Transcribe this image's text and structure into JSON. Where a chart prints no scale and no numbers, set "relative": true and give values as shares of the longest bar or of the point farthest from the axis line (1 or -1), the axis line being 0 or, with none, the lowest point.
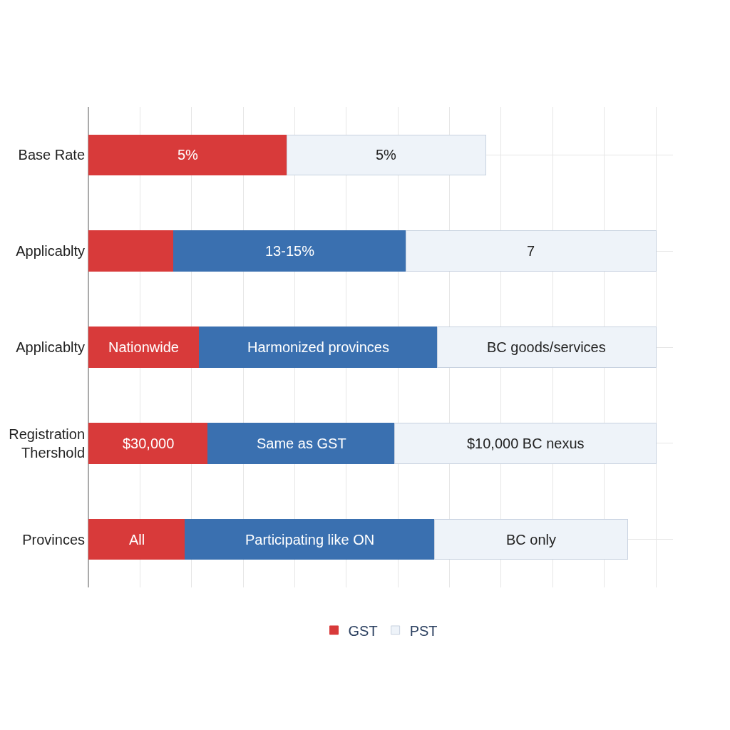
{
  "chart_data": {
    "type": "bar",
    "orientation": "horizontal",
    "stacked": true,
    "relative": true,
    "categories": [
      "Base Rate",
      "Applicablty",
      "Applicablty",
      "Registration\nThershold",
      "Provinces"
    ],
    "series": [
      {
        "name": "GST",
        "color": "#d83a3a",
        "values": [
          0.35,
          0.15,
          0.195,
          0.21,
          0.17
        ]
      },
      {
        "color": "#3a70b0",
        "values": [
          0,
          0.41,
          0.42,
          0.33,
          0.44
        ]
      },
      {
        "name": "PST",
        "color": "#eef3f9",
        "values": [
          0.35,
          0.44,
          0.385,
          0.46,
          0.34
        ]
      }
    ],
    "annotations": [
      "5%",
      "5%",
      null,
      "13-15%",
      "7",
      "Nationwide",
      "Harmonized provinces",
      "BC goods/services",
      "$30,000",
      "Same as GST",
      "$10,000 BC nexus",
      "All",
      "Participating like ON",
      "BC only"
    ],
    "grid": true,
    "legend": "bottom"
  }
}
